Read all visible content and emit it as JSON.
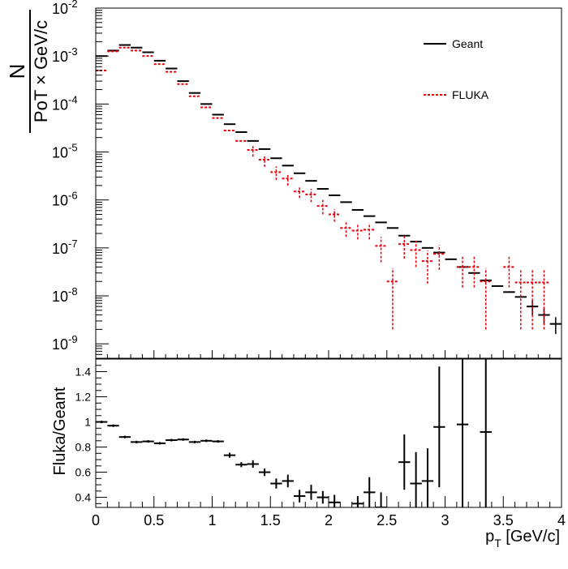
{
  "chart_data": [
    {
      "type": "scatter",
      "style": "step-histogram-with-error-bars",
      "ylabel_numerator": "N",
      "ylabel_denominator": "PoT × GeV/c",
      "xlim": [
        0,
        4
      ],
      "ylim": [
        5e-10,
        0.01
      ],
      "yscale": "log",
      "bin_width": 0.1,
      "legend_position": "top-right",
      "yticks": [
        {
          "value": 1e-09,
          "base": "10",
          "exp": "-9"
        },
        {
          "value": 1e-08,
          "base": "10",
          "exp": "-8"
        },
        {
          "value": 1e-07,
          "base": "10",
          "exp": "-7"
        },
        {
          "value": 1e-06,
          "base": "10",
          "exp": "-6"
        },
        {
          "value": 1e-05,
          "base": "10",
          "exp": "-5"
        },
        {
          "value": 0.0001,
          "base": "10",
          "exp": "-4"
        },
        {
          "value": 0.001,
          "base": "10",
          "exp": "-3"
        },
        {
          "value": 0.01,
          "base": "10",
          "exp": "-2"
        }
      ],
      "series": [
        {
          "name": "Geant",
          "color": "#000000",
          "dashed": false,
          "x": [
            0.05,
            0.15,
            0.25,
            0.35,
            0.45,
            0.55,
            0.65,
            0.75,
            0.85,
            0.95,
            1.05,
            1.15,
            1.25,
            1.35,
            1.45,
            1.55,
            1.65,
            1.75,
            1.85,
            1.95,
            2.05,
            2.15,
            2.25,
            2.35,
            2.45,
            2.55,
            2.65,
            2.75,
            2.85,
            2.95,
            3.05,
            3.15,
            3.25,
            3.35,
            3.45,
            3.55,
            3.65,
            3.75,
            3.85,
            3.95
          ],
          "y": [
            0.001,
            0.0013,
            0.0017,
            0.0015,
            0.0012,
            0.0008,
            0.00055,
            0.0003,
            0.00017,
            0.0001,
            6e-05,
            3.8e-05,
            2.6e-05,
            1.7e-05,
            1.15e-05,
            7.4e-06,
            5.2e-06,
            3.6e-06,
            2.5e-06,
            1.7e-06,
            1.25e-06,
            9e-07,
            6.2e-07,
            4.6e-07,
            3.4e-07,
            2.6e-07,
            1.8e-07,
            1.35e-07,
            1e-07,
            8e-08,
            5.8e-08,
            4e-08,
            3e-08,
            2.1e-08,
            1.6e-08,
            1.2e-08,
            9.5e-09,
            6e-09,
            4e-09,
            2.6e-09
          ],
          "yerr": [
            0,
            0,
            0,
            0,
            0,
            0,
            0,
            0,
            0,
            0,
            0,
            0,
            0,
            0,
            0,
            0,
            0,
            0,
            0,
            0,
            0,
            0,
            0,
            0,
            0,
            0,
            0,
            0,
            0,
            0,
            0,
            0,
            0,
            0,
            0,
            0,
            0,
            2e-09,
            1.5e-09,
            1e-09
          ]
        },
        {
          "name": "FLUKA",
          "color": "#e8000b",
          "dashed": true,
          "x": [
            0.05,
            0.15,
            0.25,
            0.35,
            0.45,
            0.55,
            0.65,
            0.75,
            0.85,
            0.95,
            1.05,
            1.15,
            1.25,
            1.35,
            1.45,
            1.55,
            1.65,
            1.75,
            1.85,
            1.95,
            2.05,
            2.15,
            2.25,
            2.35,
            2.45,
            2.55,
            2.65,
            2.75,
            2.85,
            2.95,
            3.05,
            3.15,
            3.25,
            3.35,
            3.45,
            3.55,
            3.65,
            3.75,
            3.85,
            3.95
          ],
          "y": [
            0.0005,
            0.00125,
            0.0015,
            0.0013,
            0.001,
            0.00068,
            0.00047,
            0.00026,
            0.000145,
            8.5e-05,
            5.1e-05,
            2.8e-05,
            1.7e-05,
            1.1e-05,
            6.9e-06,
            3.8e-06,
            2.8e-06,
            1.5e-06,
            1.3e-06,
            7.5e-07,
            5e-07,
            2.6e-07,
            2.3e-07,
            2.4e-07,
            1.1e-07,
            2e-08,
            1.2e-07,
            9e-08,
            5.3e-08,
            7.5e-08,
            null,
            4e-08,
            4e-08,
            2e-08,
            null,
            4e-08,
            1.9e-08,
            1.9e-08,
            1.9e-08,
            null
          ],
          "yerr": [
            0,
            0,
            0,
            0,
            0,
            0,
            0,
            0,
            0,
            0,
            0,
            0,
            0,
            3e-06,
            2e-06,
            1.2e-06,
            8e-07,
            4e-07,
            4e-07,
            2.5e-07,
            1.5e-07,
            9e-08,
            8e-08,
            9e-08,
            6e-08,
            1.8e-08,
            6e-08,
            5e-08,
            3.5e-08,
            4e-08,
            null,
            2.5e-08,
            2.5e-08,
            1.8e-08,
            null,
            2.5e-08,
            1.7e-08,
            1.7e-08,
            1.7e-08,
            null
          ]
        }
      ]
    },
    {
      "type": "scatter",
      "style": "points-with-error-bars",
      "xlabel_main": "p",
      "xlabel_sub": "T",
      "xlabel_unit": " [GeV/c]",
      "ylabel": "Fluka/Geant",
      "xlim": [
        0,
        4
      ],
      "ylim": [
        0.32,
        1.5
      ],
      "bin_width": 0.1,
      "xticks": [
        {
          "value": 0,
          "label": "0"
        },
        {
          "value": 0.5,
          "label": "0.5"
        },
        {
          "value": 1,
          "label": "1"
        },
        {
          "value": 1.5,
          "label": "1.5"
        },
        {
          "value": 2,
          "label": "2"
        },
        {
          "value": 2.5,
          "label": "2.5"
        },
        {
          "value": 3,
          "label": "3"
        },
        {
          "value": 3.5,
          "label": "3.5"
        },
        {
          "value": 4,
          "label": "4"
        }
      ],
      "yticks": [
        {
          "value": 0.4,
          "label": "0.4"
        },
        {
          "value": 0.6,
          "label": "0.6"
        },
        {
          "value": 0.8,
          "label": "0.8"
        },
        {
          "value": 1.0,
          "label": "1"
        },
        {
          "value": 1.2,
          "label": "1.2"
        },
        {
          "value": 1.4,
          "label": "1.4"
        }
      ],
      "series": [
        {
          "color": "#000000",
          "x": [
            0.05,
            0.15,
            0.25,
            0.35,
            0.45,
            0.55,
            0.65,
            0.75,
            0.85,
            0.95,
            1.05,
            1.15,
            1.25,
            1.35,
            1.45,
            1.55,
            1.65,
            1.75,
            1.85,
            1.95,
            2.05,
            2.25,
            2.35,
            2.45,
            2.65,
            2.75,
            2.85,
            2.95,
            3.15,
            3.35
          ],
          "y": [
            1.0,
            0.97,
            0.88,
            0.84,
            0.845,
            0.83,
            0.855,
            0.86,
            0.84,
            0.85,
            0.845,
            0.735,
            0.66,
            0.665,
            0.6,
            0.51,
            0.53,
            0.41,
            0.44,
            0.4,
            0.36,
            0.35,
            0.44,
            0.32,
            0.68,
            0.51,
            0.53,
            0.96,
            0.98,
            0.92
          ],
          "yerr": [
            0.01,
            0.01,
            0.01,
            0.01,
            0.01,
            0.01,
            0.01,
            0.01,
            0.01,
            0.01,
            0.01,
            0.02,
            0.02,
            0.03,
            0.03,
            0.04,
            0.05,
            0.05,
            0.06,
            0.05,
            0.06,
            0.06,
            0.12,
            0.12,
            0.22,
            0.25,
            0.26,
            0.48,
            0.7,
            0.7
          ]
        }
      ]
    }
  ],
  "legend": {
    "geant_label": "Geant",
    "fluka_label": "FLUKA"
  }
}
